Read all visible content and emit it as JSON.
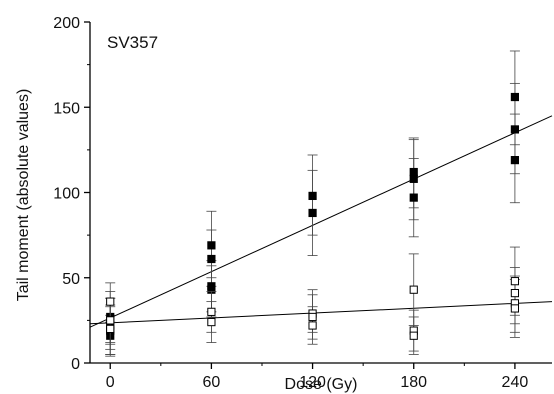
{
  "chart_data": {
    "type": "scatter",
    "title": "",
    "annotation": "SV357",
    "xlabel": "Dose (Gy)",
    "ylabel": "Tail moment (absolute values)",
    "xlim": [
      -12,
      262
    ],
    "ylim": [
      0,
      200
    ],
    "xticks": [
      0,
      60,
      120,
      180,
      240
    ],
    "xtick_labels": [
      "0",
      "60",
      "120",
      "180",
      "240"
    ],
    "yticks": [
      0,
      50,
      100,
      150,
      200
    ],
    "ytick_labels": [
      "0",
      "50",
      "100",
      "150",
      "200"
    ],
    "grid": false,
    "legend": "none",
    "series": [
      {
        "marker": "filled-square",
        "color": "#000000",
        "points": [
          {
            "x": 0,
            "y": 27,
            "lo": 11,
            "hi": 42
          },
          {
            "x": 0,
            "y": 22,
            "lo": 5,
            "hi": 38
          },
          {
            "x": 0,
            "y": 19,
            "lo": 4,
            "hi": 34
          },
          {
            "x": 0,
            "y": 16,
            "lo": 5,
            "hi": 28
          },
          {
            "x": 60,
            "y": 69,
            "lo": 50,
            "hi": 89
          },
          {
            "x": 60,
            "y": 61,
            "lo": 45,
            "hi": 78
          },
          {
            "x": 60,
            "y": 45,
            "lo": 30,
            "hi": 60
          },
          {
            "x": 60,
            "y": 43,
            "lo": 27,
            "hi": 57
          },
          {
            "x": 120,
            "y": 98,
            "lo": 75,
            "hi": 122
          },
          {
            "x": 120,
            "y": 88,
            "lo": 63,
            "hi": 113
          },
          {
            "x": 180,
            "y": 112,
            "lo": 91,
            "hi": 132
          },
          {
            "x": 180,
            "y": 108,
            "lo": 84,
            "hi": 131
          },
          {
            "x": 180,
            "y": 97,
            "lo": 74,
            "hi": 120
          },
          {
            "x": 240,
            "y": 156,
            "lo": 128,
            "hi": 183
          },
          {
            "x": 240,
            "y": 137,
            "lo": 111,
            "hi": 164
          },
          {
            "x": 240,
            "y": 119,
            "lo": 94,
            "hi": 146
          }
        ],
        "fit": {
          "x0": -12,
          "y0": 21,
          "x1": 262,
          "y1": 145
        }
      },
      {
        "marker": "open-square",
        "color": "#000000",
        "points": [
          {
            "x": 0,
            "y": 36,
            "lo": 24,
            "hi": 47
          },
          {
            "x": 0,
            "y": 25,
            "lo": 12,
            "hi": 38
          },
          {
            "x": 0,
            "y": 20,
            "lo": 8,
            "hi": 33
          },
          {
            "x": 60,
            "y": 30,
            "lo": 18,
            "hi": 42
          },
          {
            "x": 60,
            "y": 24,
            "lo": 12,
            "hi": 36
          },
          {
            "x": 120,
            "y": 29,
            "lo": 18,
            "hi": 43
          },
          {
            "x": 120,
            "y": 27,
            "lo": 14,
            "hi": 40
          },
          {
            "x": 120,
            "y": 22,
            "lo": 11,
            "hi": 33
          },
          {
            "x": 180,
            "y": 43,
            "lo": 22,
            "hi": 64
          },
          {
            "x": 180,
            "y": 19,
            "lo": 7,
            "hi": 31
          },
          {
            "x": 180,
            "y": 16,
            "lo": 5,
            "hi": 27
          },
          {
            "x": 240,
            "y": 48,
            "lo": 28,
            "hi": 68
          },
          {
            "x": 240,
            "y": 41,
            "lo": 23,
            "hi": 56
          },
          {
            "x": 240,
            "y": 35,
            "lo": 18,
            "hi": 51
          },
          {
            "x": 240,
            "y": 32,
            "lo": 15,
            "hi": 49
          }
        ],
        "fit": {
          "x0": -12,
          "y0": 23,
          "x1": 262,
          "y1": 36
        }
      }
    ]
  }
}
